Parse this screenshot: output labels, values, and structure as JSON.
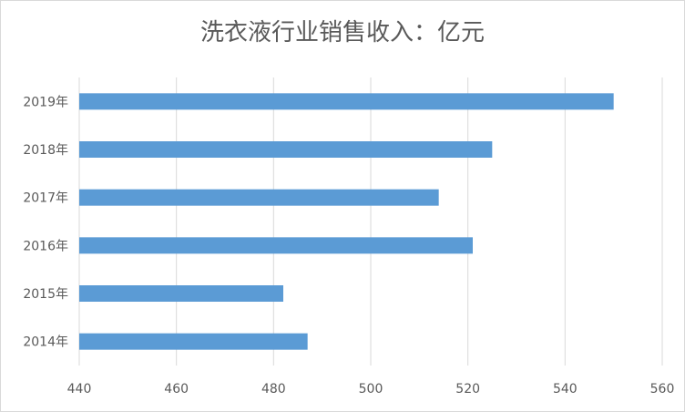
{
  "chart_data": {
    "type": "bar",
    "orientation": "horizontal",
    "title": "洗衣液行业销售收入：亿元",
    "categories": [
      "2014年",
      "2015年",
      "2016年",
      "2017年",
      "2018年",
      "2019年"
    ],
    "values": [
      487,
      482,
      521,
      514,
      525,
      550
    ],
    "xlim": [
      440,
      560
    ],
    "xticks": [
      440,
      460,
      480,
      500,
      520,
      540,
      560
    ],
    "grid": true,
    "bar_color": "#5b9bd5"
  }
}
